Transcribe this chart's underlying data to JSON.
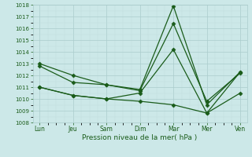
{
  "title": "",
  "xlabel": "Pression niveau de la mer( hPa )",
  "ylim": [
    1008,
    1018
  ],
  "yticks": [
    1008,
    1009,
    1010,
    1011,
    1012,
    1013,
    1014,
    1015,
    1016,
    1017,
    1018
  ],
  "xtick_labels": [
    "Lun",
    "Jeu",
    "Sam",
    "Dim",
    "Mar",
    "Mer",
    "Ven"
  ],
  "xtick_positions": [
    0,
    1,
    2,
    3,
    4,
    5,
    6
  ],
  "bg_color": "#cce8e8",
  "line_color": "#1a5c1a",
  "grid_color_major": "#aacccc",
  "grid_color_minor": "#c0dcdc",
  "series": [
    [
      1013.0,
      1012.0,
      1011.2,
      1010.8,
      1017.9,
      1009.5,
      1012.3
    ],
    [
      1012.8,
      1011.4,
      1011.2,
      1010.7,
      1016.4,
      1009.8,
      1012.2
    ],
    [
      1011.0,
      1010.3,
      1010.0,
      1010.5,
      1014.2,
      1008.8,
      1010.5
    ],
    [
      1011.0,
      1010.3,
      1010.0,
      1009.8,
      1009.5,
      1008.8,
      1012.3
    ]
  ],
  "marker_size": 2.5,
  "line_width": 0.9,
  "figsize": [
    3.2,
    2.0
  ],
  "dpi": 100
}
